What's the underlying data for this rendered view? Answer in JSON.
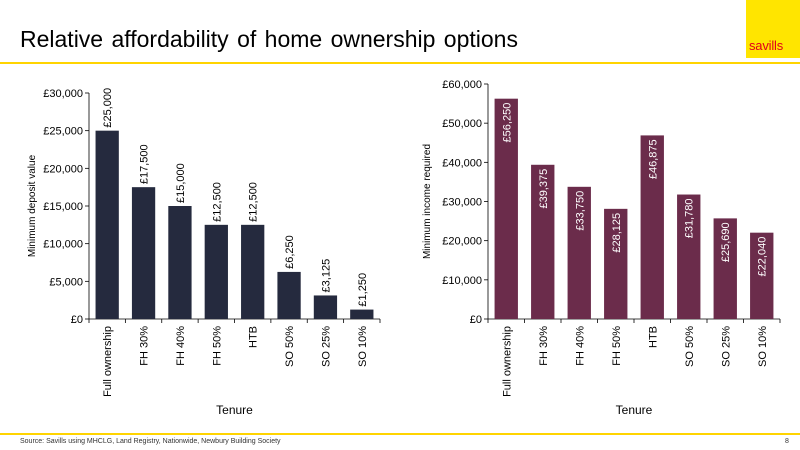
{
  "header": {
    "title": "Relative affordability of home ownership options",
    "logo_text": "savills"
  },
  "footer": {
    "source": "Source: Savills using MHCLG, Land Registry, Nationwide, Newbury Building Society",
    "page_number": "8"
  },
  "colors": {
    "accent_yellow": "#ffd400",
    "logo_red": "#e2001a",
    "series_left": "#252a3e",
    "series_right": "#6b2c4b"
  },
  "chart_data": [
    {
      "type": "bar",
      "categories": [
        "Full ownership",
        "FH 30%",
        "FH 40%",
        "FH 50%",
        "HTB",
        "SO 50%",
        "SO 25%",
        "SO 10%"
      ],
      "values": [
        25000,
        17500,
        15000,
        12500,
        12500,
        6250,
        3125,
        1250
      ],
      "data_labels": [
        "£25,000",
        "£17,500",
        "£15,000",
        "£12,500",
        "£12,500",
        "£6,250",
        "£3,125",
        "£1,250"
      ],
      "ylim": [
        0,
        30000
      ],
      "yticks": [
        0,
        5000,
        10000,
        15000,
        20000,
        25000,
        30000
      ],
      "ytick_labels": [
        "£0",
        "£5,000",
        "£10,000",
        "£15,000",
        "£20,000",
        "£25,000",
        "£30,000"
      ],
      "xlabel": "Tenure",
      "ylabel": "Minimum deposit value",
      "grid": false,
      "label_position": "above"
    },
    {
      "type": "bar",
      "categories": [
        "Full ownership",
        "FH 30%",
        "FH 40%",
        "FH 50%",
        "HTB",
        "SO 50%",
        "SO 25%",
        "SO 10%"
      ],
      "values": [
        56250,
        39375,
        33750,
        28125,
        46875,
        31780,
        25690,
        22040
      ],
      "data_labels": [
        "£56,250",
        "£39,375",
        "£33,750",
        "£28,125",
        "£46,875",
        "£31,780",
        "£25,690",
        "£22,040"
      ],
      "ylim": [
        0,
        60000
      ],
      "yticks": [
        0,
        10000,
        20000,
        30000,
        40000,
        50000,
        60000
      ],
      "ytick_labels": [
        "£0",
        "£10,000",
        "£20,000",
        "£30,000",
        "£40,000",
        "£50,000",
        "£60,000"
      ],
      "xlabel": "Tenure",
      "ylabel": "Minimum income required",
      "grid": false,
      "label_position": "inside"
    }
  ]
}
